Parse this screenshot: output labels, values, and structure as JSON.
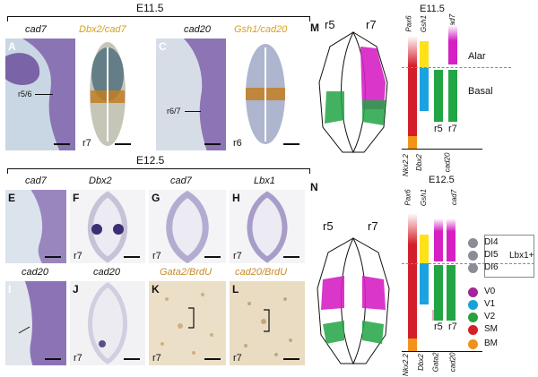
{
  "top_section": {
    "stage": "E11.5",
    "genes": [
      "cad7",
      "Dbx2/cad7",
      "cad20",
      "Gsh1/cad20"
    ],
    "panels": [
      {
        "label": "A",
        "arrow_text": "r5/6",
        "rtag": ""
      },
      {
        "label": "B",
        "arrow_text": "",
        "rtag": "r7"
      },
      {
        "label": "C",
        "arrow_text": "r6/7",
        "rtag": ""
      },
      {
        "label": "D",
        "arrow_text": "",
        "rtag": "r6"
      }
    ]
  },
  "middle_section": {
    "stage": "E12.5",
    "genes": [
      "cad7",
      "Dbx2",
      "cad7",
      "Lbx1"
    ],
    "panels": [
      {
        "label": "E",
        "rtag": ""
      },
      {
        "label": "F",
        "rtag": "r7"
      },
      {
        "label": "G",
        "rtag": "r7"
      },
      {
        "label": "H",
        "rtag": "r7"
      }
    ]
  },
  "bottom_section": {
    "genes": [
      "cad20",
      "cad20",
      "Gata2/BrdU",
      "cad20/BrdU"
    ],
    "panels": [
      {
        "label": "I",
        "rtag": ""
      },
      {
        "label": "J",
        "rtag": "r7"
      },
      {
        "label": "K",
        "rtag": "r7"
      },
      {
        "label": "L",
        "rtag": "r7"
      }
    ]
  },
  "diagram_M": {
    "label": "M",
    "left_tag": "r5",
    "right_tag": "r7"
  },
  "bars_M": {
    "stage": "E11.5",
    "top_labels": [
      "Pax6",
      "Gsh1",
      "cad7"
    ],
    "bottom_labels": [
      "Nkx2.2",
      "Dbx2",
      "cad20"
    ],
    "r_labels": [
      "r5",
      "r7"
    ],
    "alar": "Alar",
    "basal": "Basal"
  },
  "diagram_N": {
    "label": "N",
    "left_tag": "r5",
    "right_tag": "r7"
  },
  "bars_N": {
    "stage": "E12.5",
    "top_labels": [
      "Pax6",
      "Gsh1",
      "cad7"
    ],
    "bottom_labels": [
      "Nkx2.2",
      "Dbx2",
      "Gata2",
      "cad20"
    ],
    "r_labels": [
      "r5",
      "r7"
    ]
  },
  "legend": {
    "bracket_label": "Lbx1+",
    "items": [
      {
        "name": "DI4",
        "color": "#8a8d95"
      },
      {
        "name": "DI5",
        "color": "#8a8d95"
      },
      {
        "name": "DI6",
        "color": "#8a8d95"
      },
      {
        "name": "V0",
        "color": "#a4269a"
      },
      {
        "name": "V1",
        "color": "#18a3d8"
      },
      {
        "name": "V2",
        "color": "#27a23e"
      },
      {
        "name": "SM",
        "color": "#d4202a"
      },
      {
        "name": "BM",
        "color": "#f09019"
      }
    ]
  },
  "colors": {
    "magenta": "#d620c4",
    "green": "#22a544",
    "red": "#d41f2a",
    "orange": "#f29419",
    "yellow": "#ffe11a",
    "blue": "#1aa3e0",
    "pink": "#f3a1c1"
  }
}
